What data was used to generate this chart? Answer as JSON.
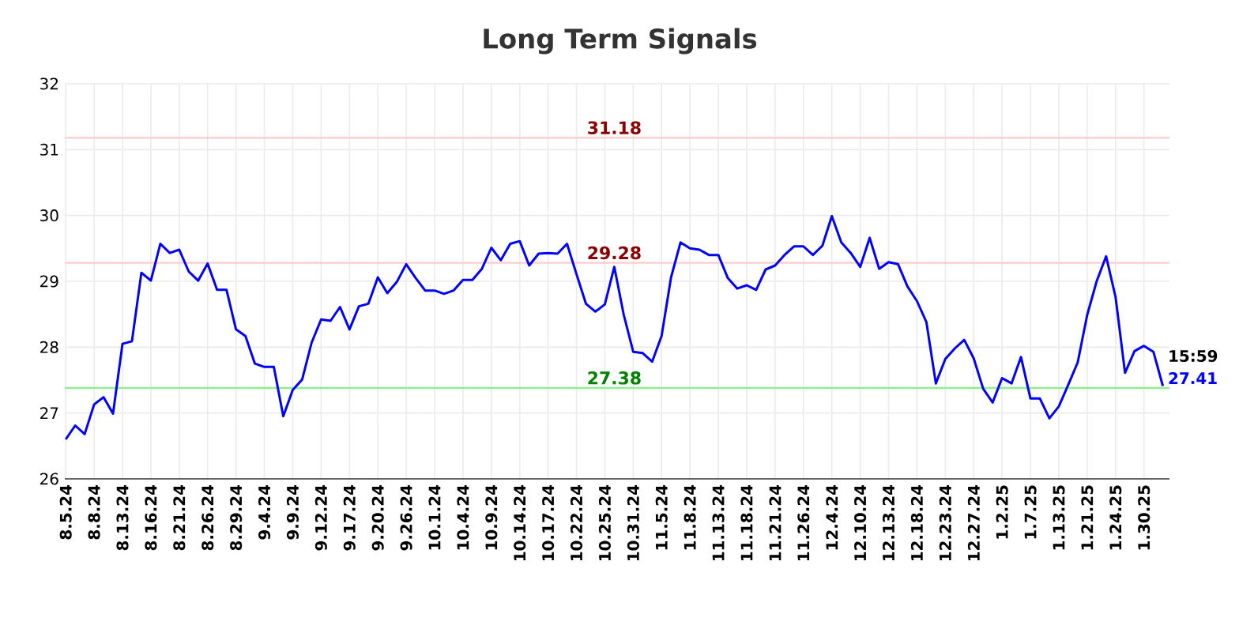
{
  "chart_data": {
    "type": "line",
    "title": "Long Term Signals",
    "categories": [
      "8.5.24",
      null,
      null,
      "8.8.24",
      null,
      null,
      "8.13.24",
      null,
      null,
      "8.16.24",
      null,
      null,
      "8.21.24",
      null,
      null,
      "8.26.24",
      null,
      null,
      "8.29.24",
      null,
      null,
      "9.4.24",
      null,
      null,
      "9.9.24",
      null,
      null,
      "9.12.24",
      null,
      null,
      "9.17.24",
      null,
      null,
      "9.20.24",
      null,
      null,
      "9.26.24",
      null,
      null,
      "10.1.24",
      null,
      null,
      "10.4.24",
      null,
      null,
      "10.9.24",
      null,
      null,
      "10.14.24",
      null,
      null,
      "10.17.24",
      null,
      null,
      "10.22.24",
      null,
      null,
      "10.25.24",
      null,
      null,
      "10.31.24",
      null,
      null,
      "11.5.24",
      null,
      null,
      "11.8.24",
      null,
      null,
      "11.13.24",
      null,
      null,
      "11.18.24",
      null,
      null,
      "11.21.24",
      null,
      null,
      "11.26.24",
      null,
      null,
      "12.4.24",
      null,
      null,
      "12.10.24",
      null,
      null,
      "12.13.24",
      null,
      null,
      "12.18.24",
      null,
      null,
      "12.23.24",
      null,
      null,
      "12.27.24",
      null,
      null,
      "1.2.25",
      null,
      null,
      "1.7.25",
      null,
      null,
      "1.13.25",
      null,
      null,
      "1.21.25",
      null,
      null,
      "1.24.25",
      null,
      null,
      "1.30.25",
      null,
      null
    ],
    "series": [
      {
        "color": "#0000ff",
        "values": [
          26.6,
          26.81,
          26.68,
          27.13,
          27.24,
          26.99,
          28.05,
          28.09,
          29.13,
          29.01,
          29.57,
          29.43,
          29.48,
          29.15,
          29.01,
          29.27,
          28.87,
          28.87,
          28.27,
          28.17,
          27.75,
          27.7,
          27.7,
          26.95,
          27.35,
          27.51,
          28.07,
          28.42,
          28.4,
          28.61,
          28.27,
          28.62,
          28.66,
          29.06,
          28.82,
          28.99,
          29.26,
          29.05,
          28.86,
          28.86,
          28.81,
          28.86,
          29.02,
          29.02,
          29.19,
          29.51,
          29.32,
          29.57,
          29.61,
          29.24,
          29.42,
          29.43,
          29.42,
          29.57,
          29.11,
          28.66,
          28.54,
          28.65,
          29.22,
          28.49,
          27.93,
          27.91,
          27.78,
          28.17,
          29.06,
          29.59,
          29.5,
          29.48,
          29.4,
          29.4,
          29.05,
          28.89,
          28.94,
          28.87,
          29.18,
          29.24,
          29.4,
          29.53,
          29.53,
          29.4,
          29.54,
          29.99,
          29.59,
          29.43,
          29.22,
          29.66,
          29.19,
          29.29,
          29.26,
          28.92,
          28.7,
          28.38,
          27.45,
          27.82,
          27.98,
          28.11,
          27.83,
          27.37,
          27.16,
          27.53,
          27.45,
          27.85,
          27.22,
          27.22,
          26.92,
          27.1,
          27.43,
          27.77,
          28.49,
          29.0,
          29.38,
          28.76,
          27.61,
          27.94,
          28.02,
          27.93,
          27.41
        ],
        "value_labels": [
          null,
          null,
          null,
          null,
          null,
          null,
          null,
          null,
          null,
          null,
          null,
          null,
          null,
          null,
          null,
          null,
          null,
          null,
          null,
          null,
          null,
          null,
          null,
          null,
          null,
          null,
          null,
          null,
          null,
          null,
          null,
          null,
          null,
          null,
          null,
          null,
          null,
          null,
          null,
          null,
          null,
          null,
          null,
          null,
          null,
          null,
          null,
          null,
          null,
          null,
          null,
          null,
          null,
          null,
          null,
          null,
          null,
          null,
          null,
          null,
          null,
          null,
          null,
          null,
          null,
          null,
          null,
          null,
          null,
          null,
          null,
          null,
          null,
          null,
          null,
          null,
          null,
          null,
          null,
          null,
          null,
          null,
          null,
          null,
          null,
          null,
          null,
          null,
          null,
          null,
          null,
          null,
          null,
          null,
          null,
          null,
          null,
          null,
          null,
          null,
          null,
          null,
          null,
          null,
          null,
          null,
          null,
          null,
          null,
          null,
          null,
          null,
          null,
          null,
          null,
          null,
          "27.41"
        ]
      }
    ],
    "ylim": [
      26,
      32
    ],
    "yticks": [
      26,
      27,
      28,
      29,
      30,
      31,
      32
    ],
    "grid": true,
    "ref_lines": [
      {
        "axis": "y",
        "value": 31.18,
        "label": "31.18",
        "color": "#ffcccc"
      },
      {
        "axis": "y",
        "value": 29.28,
        "label": "29.28",
        "color": "#ffcccc"
      },
      {
        "axis": "y",
        "value": 27.38,
        "label": "27.38",
        "color": "#90ee90"
      }
    ],
    "annotations": [
      "15:59"
    ]
  }
}
